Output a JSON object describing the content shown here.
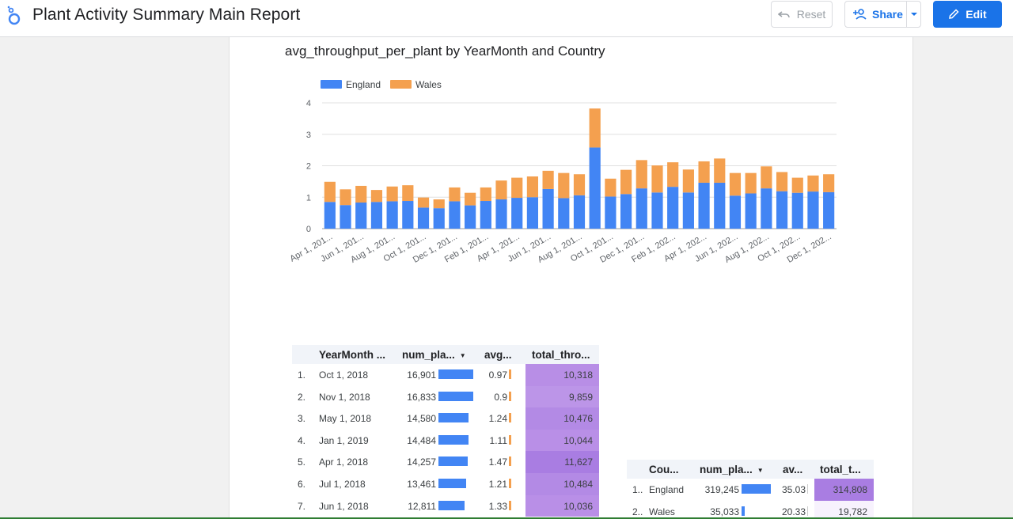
{
  "header": {
    "title": "Plant Activity Summary Main Report",
    "reset_label": "Reset",
    "share_label": "Share",
    "edit_label": "Edit"
  },
  "chart_data": {
    "type": "bar",
    "stacked": true,
    "title": "avg_throughput_per_plant by YearMonth and Country",
    "ylim": [
      0,
      4
    ],
    "yticks": [
      "0",
      "1",
      "2",
      "3",
      "4"
    ],
    "grid": true,
    "legend_position": "top-left",
    "xtick_labels": [
      "Apr 1, 201...",
      "Jun 1, 201...",
      "Aug 1, 201...",
      "Oct 1, 201...",
      "Dec 1, 201...",
      "Feb 1, 201...",
      "Apr 1, 201...",
      "Jun 1, 201...",
      "Aug 1, 201...",
      "Oct 1, 201...",
      "Dec 1, 201...",
      "Feb 1, 202...",
      "Apr 1, 202...",
      "Jun 1, 202...",
      "Aug 1, 202...",
      "Oct 1, 202...",
      "Dec 1, 202..."
    ],
    "series": [
      {
        "name": "England",
        "color": "#4285f4",
        "values": [
          0.85,
          0.75,
          0.83,
          0.85,
          0.87,
          0.88,
          0.67,
          0.65,
          0.87,
          0.74,
          0.88,
          0.93,
          0.98,
          1.0,
          1.26,
          0.97,
          1.06,
          2.58,
          1.02,
          1.1,
          1.28,
          1.15,
          1.33,
          1.15,
          1.46,
          1.46,
          1.05,
          1.12,
          1.28,
          1.19,
          1.14,
          1.18,
          1.16
        ]
      },
      {
        "name": "Wales",
        "color": "#f4a04f",
        "values": [
          0.64,
          0.5,
          0.53,
          0.38,
          0.47,
          0.5,
          0.32,
          0.28,
          0.44,
          0.4,
          0.43,
          0.6,
          0.64,
          0.66,
          0.58,
          0.8,
          0.67,
          1.24,
          0.57,
          0.77,
          0.9,
          0.86,
          0.78,
          0.73,
          0.68,
          0.77,
          0.72,
          0.65,
          0.7,
          0.61,
          0.48,
          0.51,
          0.57
        ]
      }
    ]
  },
  "table1": {
    "headers": [
      "YearMonth ...",
      "num_pla...",
      "avg...",
      "total_thro..."
    ],
    "rows": [
      {
        "idx": "1.",
        "ym": "Oct 1, 2018",
        "num": "16,901",
        "num_frac": 1.0,
        "avg": "0.97",
        "total": "10,318",
        "heat": "#b88ee6"
      },
      {
        "idx": "2.",
        "ym": "Nov 1, 2018",
        "num": "16,833",
        "num_frac": 0.996,
        "avg": "0.9",
        "total": "9,859",
        "heat": "#bc95e8"
      },
      {
        "idx": "3.",
        "ym": "May 1, 2018",
        "num": "14,580",
        "num_frac": 0.863,
        "avg": "1.24",
        "total": "10,476",
        "heat": "#b38ae5"
      },
      {
        "idx": "4.",
        "ym": "Jan 1, 2019",
        "num": "14,484",
        "num_frac": 0.857,
        "avg": "1.11",
        "total": "10,044",
        "heat": "#b98fe7"
      },
      {
        "idx": "5.",
        "ym": "Apr 1, 2018",
        "num": "14,257",
        "num_frac": 0.844,
        "avg": "1.47",
        "total": "11,627",
        "heat": "#a97de2"
      },
      {
        "idx": "6.",
        "ym": "Jul 1, 2018",
        "num": "13,461",
        "num_frac": 0.796,
        "avg": "1.21",
        "total": "10,484",
        "heat": "#b38ae5"
      },
      {
        "idx": "7.",
        "ym": "Jun 1, 2018",
        "num": "12,811",
        "num_frac": 0.758,
        "avg": "1.33",
        "total": "10,036",
        "heat": "#b98fe7"
      }
    ]
  },
  "table2": {
    "headers": [
      "Cou...",
      "num_pla...",
      "av...",
      "total_t..."
    ],
    "rows": [
      {
        "idx": "1..",
        "country": "England",
        "num": "319,245",
        "num_frac": 1.0,
        "avg": "35.03",
        "total": "314,808",
        "heat": "#a97de2"
      },
      {
        "idx": "2..",
        "country": "Wales",
        "num": "35,033",
        "num_frac": 0.11,
        "avg": "20.33",
        "total": "19,782",
        "heat": "#f7f2fd"
      }
    ]
  }
}
